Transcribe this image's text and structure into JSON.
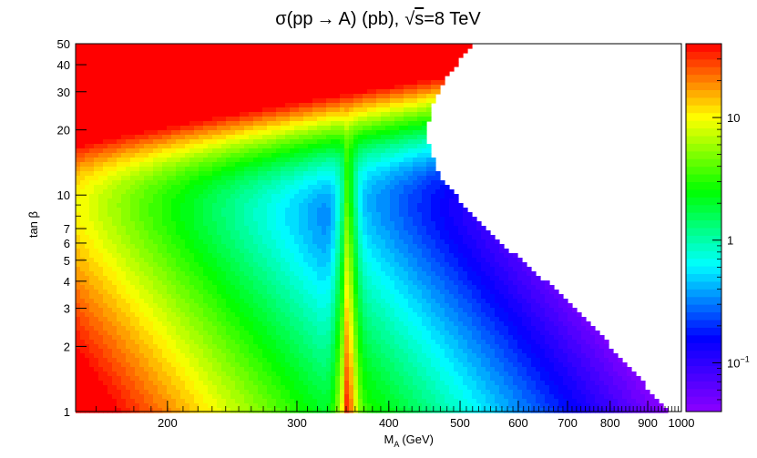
{
  "chart_data": {
    "type": "heatmap",
    "title": "σ(pp → A) (pb), √s=8 TeV",
    "title_parts": {
      "sigma": "σ",
      "pp": "(pp",
      "arrow": "→",
      "rest": "A) (pb),",
      "sqrt": "√",
      "sqrt_arg": "s",
      "energy": "=8 TeV"
    },
    "xlabel": "M",
    "xlabel_sub": "A",
    "xlabel_unit": "(GeV)",
    "ylabel": "tan β",
    "x_scale": "log",
    "y_scale": "log",
    "xlim": [
      150,
      1000
    ],
    "ylim": [
      1,
      50
    ],
    "x_ticks": [
      {
        "v": 200,
        "label": "200"
      },
      {
        "v": 300,
        "label": "300"
      },
      {
        "v": 400,
        "label": "400"
      },
      {
        "v": 500,
        "label": "500"
      },
      {
        "v": 600,
        "label": "600"
      },
      {
        "v": 700,
        "label": "700"
      },
      {
        "v": 800,
        "label": "800"
      },
      {
        "v": 900,
        "label": "900"
      },
      {
        "v": 1000,
        "label": "1000"
      }
    ],
    "y_ticks": [
      {
        "v": 1,
        "label": "1"
      },
      {
        "v": 2,
        "label": "2"
      },
      {
        "v": 3,
        "label": "3"
      },
      {
        "v": 4,
        "label": "4"
      },
      {
        "v": 5,
        "label": "5"
      },
      {
        "v": 6,
        "label": "6"
      },
      {
        "v": 7,
        "label": "7"
      },
      {
        "v": 10,
        "label": "10"
      },
      {
        "v": 20,
        "label": "20"
      },
      {
        "v": 30,
        "label": "30"
      },
      {
        "v": 40,
        "label": "40"
      },
      {
        "v": 50,
        "label": "50"
      }
    ],
    "z_scale": "log",
    "zlim": [
      0.04,
      40
    ],
    "colorbar_ticks": [
      {
        "v": 10,
        "label": "10"
      },
      {
        "v": 1,
        "label": "1"
      },
      {
        "v": 0.1,
        "label": "10",
        "sup": "−1"
      }
    ],
    "threshold_mass": 350,
    "cutoff_boundary": [
      {
        "tanb": 1,
        "mA": 960
      },
      {
        "tanb": 3,
        "mA": 720
      },
      {
        "tanb": 7,
        "mA": 540
      },
      {
        "tanb": 12,
        "mA": 470
      },
      {
        "tanb": 18,
        "mA": 450
      },
      {
        "tanb": 25,
        "mA": 455
      },
      {
        "tanb": 35,
        "mA": 480
      },
      {
        "tanb": 50,
        "mA": 520
      }
    ],
    "grid": false,
    "legend": "colorbar-right",
    "colors": {
      "palette": [
        "#8c00ff",
        "#0000ff",
        "#00ffff",
        "#00ff00",
        "#ffff00",
        "#ff0000"
      ],
      "frame": "#000000",
      "background": "#ffffff"
    }
  }
}
